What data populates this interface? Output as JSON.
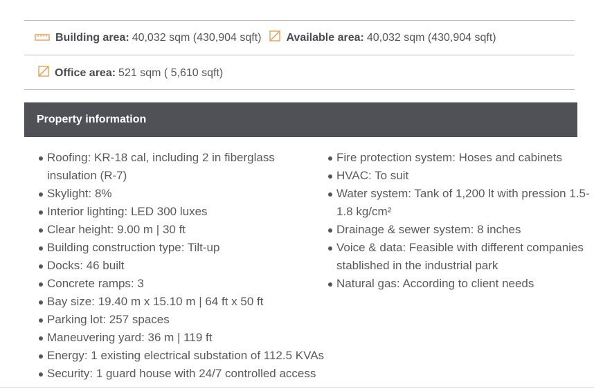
{
  "summary": {
    "building": {
      "label": "Building area:",
      "value": "40,032 sqm (430,904 sqft)",
      "icon": "ruler-icon"
    },
    "available": {
      "label": "Available area:",
      "value": "40,032 sqm (430,904 sqft)",
      "icon": "area-icon"
    },
    "office": {
      "label": "Office area:",
      "value": "521 sqm ( 5,610 sqft)",
      "icon": "area-icon"
    }
  },
  "accent": "#e8964a",
  "section": {
    "title": "Property information"
  },
  "left": [
    "Roofing: KR-18 cal, including 2 in fiberglass insulation (R-7)",
    "Skylight: 8%",
    "Interior lighting: LED 300 luxes",
    "Clear height: 9.00 m | 30 ft",
    "Building construction type: Tilt-up",
    "Docks: 46 built",
    "Concrete ramps: 3",
    "Bay size: 19.40 m x 15.10 m | 64 ft x 50 ft",
    "Parking lot: 257 spaces",
    "Maneuvering yard: 36 m | 119 ft",
    "Energy: 1 existing electrical substation of 112.5 KVAs",
    "Security: 1 guard house with 24/7 controlled access"
  ],
  "right": [
    "Fire protection system: Hoses and cabinets",
    "HVAC: To suit",
    "Water system: Tank of 1,200 lt with pression 1.5-1.8 kg/cm²",
    "Drainage & sewer system: 8 inches",
    "Voice & data: Feasible with different companies stablished in the industrial park",
    "Natural gas: According to client needs"
  ]
}
